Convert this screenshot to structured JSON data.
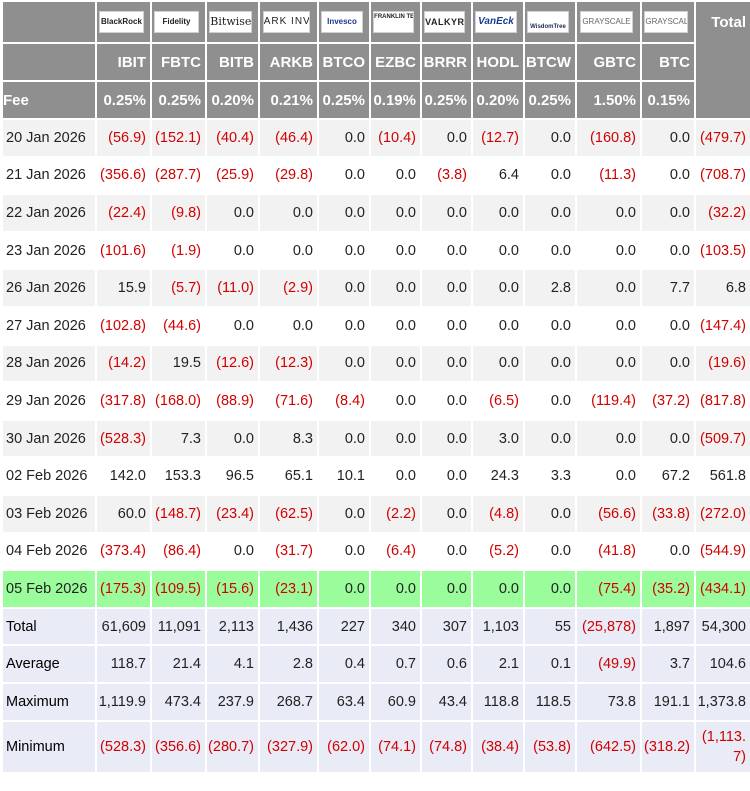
{
  "header": {
    "total_label": "Total",
    "fee_label": "Fee",
    "logos": [
      "BlackRock",
      "Fidelity",
      "Bitwise",
      "ARK INVEST",
      "Invesco",
      "FRANKLIN TEMPLETON",
      "VALKYRIE",
      "VanEck",
      "WisdomTree",
      "GRAYSCALE",
      "GRAYSCALE"
    ],
    "tickers": [
      "IBIT",
      "FBTC",
      "BITB",
      "ARKB",
      "BTCO",
      "EZBC",
      "BRRR",
      "HODL",
      "BTCW",
      "GBTC",
      "BTC"
    ],
    "fees": [
      "0.25%",
      "0.25%",
      "0.20%",
      "0.21%",
      "0.25%",
      "0.19%",
      "0.25%",
      "0.20%",
      "0.25%",
      "1.50%",
      "0.15%"
    ]
  },
  "rows": [
    {
      "date": "20 Jan 2026",
      "values": [
        "(56.9)",
        "(152.1)",
        "(40.4)",
        "(46.4)",
        "0.0",
        "(10.4)",
        "0.0",
        "(12.7)",
        "0.0",
        "(160.8)",
        "0.0"
      ],
      "total": "(479.7)"
    },
    {
      "date": "21 Jan 2026",
      "values": [
        "(356.6)",
        "(287.7)",
        "(25.9)",
        "(29.8)",
        "0.0",
        "0.0",
        "(3.8)",
        "6.4",
        "0.0",
        "(11.3)",
        "0.0"
      ],
      "total": "(708.7)"
    },
    {
      "date": "22 Jan 2026",
      "values": [
        "(22.4)",
        "(9.8)",
        "0.0",
        "0.0",
        "0.0",
        "0.0",
        "0.0",
        "0.0",
        "0.0",
        "0.0",
        "0.0"
      ],
      "total": "(32.2)"
    },
    {
      "date": "23 Jan 2026",
      "values": [
        "(101.6)",
        "(1.9)",
        "0.0",
        "0.0",
        "0.0",
        "0.0",
        "0.0",
        "0.0",
        "0.0",
        "0.0",
        "0.0"
      ],
      "total": "(103.5)"
    },
    {
      "date": "26 Jan 2026",
      "values": [
        "15.9",
        "(5.7)",
        "(11.0)",
        "(2.9)",
        "0.0",
        "0.0",
        "0.0",
        "0.0",
        "2.8",
        "0.0",
        "7.7"
      ],
      "total": "6.8"
    },
    {
      "date": "27 Jan 2026",
      "values": [
        "(102.8)",
        "(44.6)",
        "0.0",
        "0.0",
        "0.0",
        "0.0",
        "0.0",
        "0.0",
        "0.0",
        "0.0",
        "0.0"
      ],
      "total": "(147.4)"
    },
    {
      "date": "28 Jan 2026",
      "values": [
        "(14.2)",
        "19.5",
        "(12.6)",
        "(12.3)",
        "0.0",
        "0.0",
        "0.0",
        "0.0",
        "0.0",
        "0.0",
        "0.0"
      ],
      "total": "(19.6)"
    },
    {
      "date": "29 Jan 2026",
      "values": [
        "(317.8)",
        "(168.0)",
        "(88.9)",
        "(71.6)",
        "(8.4)",
        "0.0",
        "0.0",
        "(6.5)",
        "0.0",
        "(119.4)",
        "(37.2)"
      ],
      "total": "(817.8)"
    },
    {
      "date": "30 Jan 2026",
      "values": [
        "(528.3)",
        "7.3",
        "0.0",
        "8.3",
        "0.0",
        "0.0",
        "0.0",
        "3.0",
        "0.0",
        "0.0",
        "0.0"
      ],
      "total": "(509.7)"
    },
    {
      "date": "02 Feb 2026",
      "values": [
        "142.0",
        "153.3",
        "96.5",
        "65.1",
        "10.1",
        "0.0",
        "0.0",
        "24.3",
        "3.3",
        "0.0",
        "67.2"
      ],
      "total": "561.8"
    },
    {
      "date": "03 Feb 2026",
      "values": [
        "60.0",
        "(148.7)",
        "(23.4)",
        "(62.5)",
        "0.0",
        "(2.2)",
        "0.0",
        "(4.8)",
        "0.0",
        "(56.6)",
        "(33.8)"
      ],
      "total": "(272.0)"
    },
    {
      "date": "04 Feb 2026",
      "values": [
        "(373.4)",
        "(86.4)",
        "0.0",
        "(31.7)",
        "0.0",
        "(6.4)",
        "0.0",
        "(5.2)",
        "0.0",
        "(41.8)",
        "0.0"
      ],
      "total": "(544.9)"
    },
    {
      "date": "05 Feb 2026",
      "values": [
        "(175.3)",
        "(109.5)",
        "(15.6)",
        "(23.1)",
        "0.0",
        "0.0",
        "0.0",
        "0.0",
        "0.0",
        "(75.4)",
        "(35.2)"
      ],
      "total": "(434.1)",
      "highlight": true
    }
  ],
  "summary": [
    {
      "label": "Total",
      "values": [
        "61,609",
        "11,091",
        "2,113",
        "1,436",
        "227",
        "340",
        "307",
        "1,103",
        "55",
        "(25,878)",
        "1,897"
      ],
      "total": "54,300"
    },
    {
      "label": "Average",
      "values": [
        "118.7",
        "21.4",
        "4.1",
        "2.8",
        "0.4",
        "0.7",
        "0.6",
        "2.1",
        "0.1",
        "(49.9)",
        "3.7"
      ],
      "total": "104.6"
    },
    {
      "label": "Maximum",
      "values": [
        "1,119.9",
        "473.4",
        "237.9",
        "268.7",
        "63.4",
        "60.9",
        "43.4",
        "118.8",
        "118.5",
        "73.8",
        "191.1"
      ],
      "total": "1,373.8"
    },
    {
      "label": "Minimum",
      "values": [
        "(528.3)",
        "(356.6)",
        "(280.7)",
        "(327.9)",
        "(62.0)",
        "(74.1)",
        "(74.8)",
        "(38.4)",
        "(53.8)",
        "(642.5)",
        "(318.2)"
      ],
      "total": "(1,113.7)"
    }
  ],
  "colors": {
    "header_bg": "#8f8f8f",
    "negative": "#d10000",
    "highlight": "#9bfc9b",
    "summary_bg": "#e9ebf7",
    "stripe": "#f2f2f2"
  }
}
